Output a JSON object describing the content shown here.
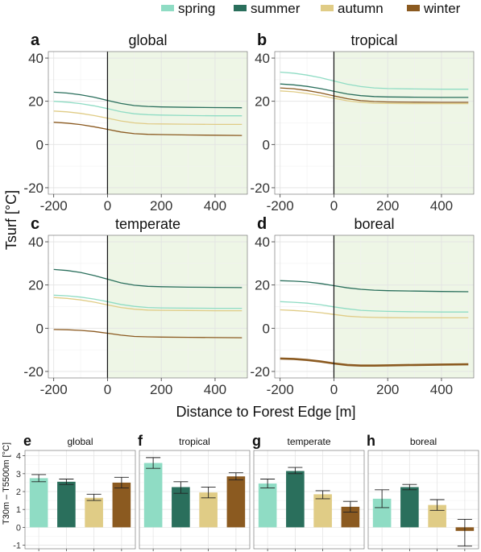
{
  "figure": {
    "legend": [
      {
        "label": "spring",
        "color": "#8fdcc4"
      },
      {
        "label": "summer",
        "color": "#2a6f5c"
      },
      {
        "label": "autumn",
        "color": "#e0cc86"
      },
      {
        "label": "winter",
        "color": "#8b5a20"
      }
    ],
    "top_ylabel": "Tsurf [°C]",
    "top_xlabel": "Distance to Forest Edge [m]",
    "bottom_ylabel": "T30m – T5500m [°C]",
    "forest_color": "#eef6e6"
  },
  "chart_data": [
    {
      "panel": "a",
      "type": "line",
      "title": "global",
      "xlim": [
        -220,
        520
      ],
      "ylim": [
        -23,
        43
      ],
      "x_ticks": [
        -200,
        0,
        200,
        400
      ],
      "y_ticks": [
        -20,
        0,
        20,
        40
      ],
      "series": [
        {
          "name": "summer",
          "x": [
            -200,
            -150,
            -100,
            -50,
            0,
            50,
            100,
            150,
            200,
            300,
            400,
            500
          ],
          "y": [
            24.2,
            23.8,
            23.0,
            21.9,
            20.4,
            19.0,
            18.0,
            17.6,
            17.4,
            17.2,
            17.1,
            17.0
          ]
        },
        {
          "name": "spring",
          "x": [
            -200,
            -150,
            -100,
            -50,
            0,
            50,
            100,
            150,
            200,
            300,
            400,
            500
          ],
          "y": [
            20.0,
            19.6,
            18.9,
            17.9,
            16.6,
            15.2,
            14.2,
            13.8,
            13.6,
            13.4,
            13.3,
            13.3
          ]
        },
        {
          "name": "autumn",
          "x": [
            -200,
            -150,
            -100,
            -50,
            0,
            50,
            100,
            150,
            200,
            300,
            400,
            500
          ],
          "y": [
            15.5,
            15.1,
            14.4,
            13.4,
            12.2,
            10.9,
            10.0,
            9.6,
            9.5,
            9.4,
            9.3,
            9.3
          ]
        },
        {
          "name": "winter",
          "x": [
            -200,
            -150,
            -100,
            -50,
            0,
            50,
            100,
            150,
            200,
            300,
            400,
            500
          ],
          "y": [
            10.3,
            9.9,
            9.2,
            8.2,
            7.0,
            5.8,
            5.0,
            4.7,
            4.6,
            4.4,
            4.3,
            4.2
          ]
        }
      ]
    },
    {
      "panel": "b",
      "type": "line",
      "title": "tropical",
      "xlim": [
        -220,
        520
      ],
      "ylim": [
        -23,
        43
      ],
      "x_ticks": [
        -200,
        0,
        200,
        400
      ],
      "y_ticks": [
        -20,
        0,
        20,
        40
      ],
      "series": [
        {
          "name": "spring",
          "x": [
            -200,
            -150,
            -100,
            -50,
            0,
            50,
            100,
            150,
            200,
            300,
            400,
            500
          ],
          "y": [
            33.5,
            33.0,
            32.1,
            30.9,
            29.4,
            27.9,
            26.8,
            26.2,
            25.9,
            25.7,
            25.6,
            25.6
          ]
        },
        {
          "name": "summer",
          "x": [
            -200,
            -150,
            -100,
            -50,
            0,
            50,
            100,
            150,
            200,
            300,
            400,
            500
          ],
          "y": [
            28.0,
            27.6,
            26.9,
            25.9,
            24.6,
            23.4,
            22.6,
            22.2,
            22.0,
            21.9,
            21.8,
            21.8
          ]
        },
        {
          "name": "winter",
          "x": [
            -200,
            -150,
            -100,
            -50,
            0,
            50,
            100,
            150,
            200,
            300,
            400,
            500
          ],
          "y": [
            26.2,
            25.8,
            25.0,
            23.9,
            22.5,
            21.2,
            20.3,
            19.9,
            19.7,
            19.6,
            19.5,
            19.5
          ]
        },
        {
          "name": "autumn",
          "x": [
            -200,
            -150,
            -100,
            -50,
            0,
            50,
            100,
            150,
            200,
            300,
            400,
            500
          ],
          "y": [
            24.8,
            24.4,
            23.6,
            22.6,
            21.4,
            20.2,
            19.5,
            19.1,
            19.0,
            18.9,
            18.9,
            18.9
          ]
        }
      ]
    },
    {
      "panel": "c",
      "type": "line",
      "title": "temperate",
      "xlim": [
        -220,
        520
      ],
      "ylim": [
        -23,
        43
      ],
      "x_ticks": [
        -200,
        0,
        200,
        400
      ],
      "y_ticks": [
        -20,
        0,
        20,
        40
      ],
      "series": [
        {
          "name": "summer",
          "x": [
            -200,
            -150,
            -100,
            -50,
            0,
            50,
            100,
            150,
            200,
            300,
            400,
            500
          ],
          "y": [
            27.2,
            26.7,
            25.8,
            24.4,
            22.7,
            21.0,
            19.9,
            19.4,
            19.2,
            19.0,
            18.9,
            18.8
          ]
        },
        {
          "name": "spring",
          "x": [
            -200,
            -150,
            -100,
            -50,
            0,
            50,
            100,
            150,
            200,
            300,
            400,
            500
          ],
          "y": [
            15.3,
            15.0,
            14.4,
            13.5,
            12.3,
            11.0,
            10.1,
            9.6,
            9.4,
            9.3,
            9.2,
            9.2
          ]
        },
        {
          "name": "autumn",
          "x": [
            -200,
            -150,
            -100,
            -50,
            0,
            50,
            100,
            150,
            200,
            300,
            400,
            500
          ],
          "y": [
            14.2,
            13.8,
            13.1,
            12.1,
            10.8,
            9.6,
            8.8,
            8.4,
            8.3,
            8.2,
            8.1,
            8.1
          ]
        },
        {
          "name": "winter",
          "x": [
            -200,
            -150,
            -100,
            -50,
            0,
            50,
            100,
            150,
            200,
            300,
            400,
            500
          ],
          "y": [
            -0.6,
            -0.7,
            -1.0,
            -1.5,
            -2.3,
            -3.2,
            -3.8,
            -4.0,
            -4.1,
            -4.2,
            -4.3,
            -4.4
          ]
        }
      ]
    },
    {
      "panel": "d",
      "type": "line",
      "title": "boreal",
      "xlim": [
        -220,
        520
      ],
      "ylim": [
        -23,
        43
      ],
      "x_ticks": [
        -200,
        0,
        200,
        400
      ],
      "y_ticks": [
        -20,
        0,
        20,
        40
      ],
      "series": [
        {
          "name": "summer",
          "x": [
            -200,
            -150,
            -100,
            -50,
            0,
            50,
            100,
            150,
            200,
            300,
            400,
            500
          ],
          "y": [
            22.0,
            21.8,
            21.4,
            20.7,
            19.7,
            18.7,
            18.0,
            17.6,
            17.4,
            17.2,
            17.0,
            16.9
          ]
        },
        {
          "name": "spring",
          "x": [
            -200,
            -150,
            -100,
            -50,
            0,
            50,
            100,
            150,
            200,
            300,
            400,
            500
          ],
          "y": [
            12.3,
            12.0,
            11.6,
            10.9,
            9.9,
            9.0,
            8.3,
            8.0,
            7.8,
            7.6,
            7.5,
            7.5
          ]
        },
        {
          "name": "autumn",
          "x": [
            -200,
            -150,
            -100,
            -50,
            0,
            50,
            100,
            150,
            200,
            300,
            400,
            500
          ],
          "y": [
            8.5,
            8.2,
            7.8,
            7.2,
            6.4,
            5.6,
            5.2,
            5.0,
            4.9,
            4.8,
            4.8,
            4.8
          ]
        },
        {
          "name": "winter",
          "x": [
            -200,
            -150,
            -100,
            -50,
            0,
            50,
            100,
            150,
            200,
            300,
            400,
            500
          ],
          "y": [
            -14.0,
            -14.2,
            -14.7,
            -15.4,
            -16.3,
            -17.0,
            -17.3,
            -17.3,
            -17.2,
            -17.0,
            -16.8,
            -16.7
          ]
        }
      ]
    },
    {
      "panel": "e",
      "type": "bar",
      "title": "global",
      "ylim": [
        -1.2,
        4.3
      ],
      "y_ticks": [
        -1,
        0,
        1,
        2,
        3,
        4
      ],
      "categories": [
        "spring",
        "summer",
        "autumn",
        "winter"
      ],
      "values": [
        2.75,
        2.55,
        1.65,
        2.5
      ],
      "err_low": [
        2.55,
        2.4,
        1.5,
        2.2
      ],
      "err_high": [
        2.95,
        2.7,
        1.85,
        2.8
      ]
    },
    {
      "panel": "f",
      "type": "bar",
      "title": "tropical",
      "ylim": [
        -1.2,
        4.3
      ],
      "y_ticks": [
        -1,
        0,
        1,
        2,
        3,
        4
      ],
      "categories": [
        "spring",
        "summer",
        "autumn",
        "winter"
      ],
      "values": [
        3.6,
        2.25,
        1.95,
        2.85
      ],
      "err_low": [
        3.3,
        1.9,
        1.65,
        2.65
      ],
      "err_high": [
        3.9,
        2.55,
        2.25,
        3.05
      ]
    },
    {
      "panel": "g",
      "type": "bar",
      "title": "temperate",
      "ylim": [
        -1.2,
        4.3
      ],
      "y_ticks": [
        -1,
        0,
        1,
        2,
        3,
        4
      ],
      "categories": [
        "spring",
        "summer",
        "autumn",
        "winter"
      ],
      "values": [
        2.45,
        3.15,
        1.85,
        1.15
      ],
      "err_low": [
        2.2,
        3.0,
        1.6,
        0.85
      ],
      "err_high": [
        2.7,
        3.35,
        2.05,
        1.45
      ]
    },
    {
      "panel": "h",
      "type": "bar",
      "title": "boreal",
      "ylim": [
        -1.2,
        4.3
      ],
      "y_ticks": [
        -1,
        0,
        1,
        2,
        3,
        4
      ],
      "categories": [
        "spring",
        "summer",
        "autumn",
        "winter"
      ],
      "values": [
        1.6,
        2.25,
        1.25,
        -0.2
      ],
      "err_low": [
        1.1,
        2.1,
        0.95,
        -1.05
      ],
      "err_high": [
        2.1,
        2.4,
        1.55,
        0.45
      ]
    }
  ]
}
